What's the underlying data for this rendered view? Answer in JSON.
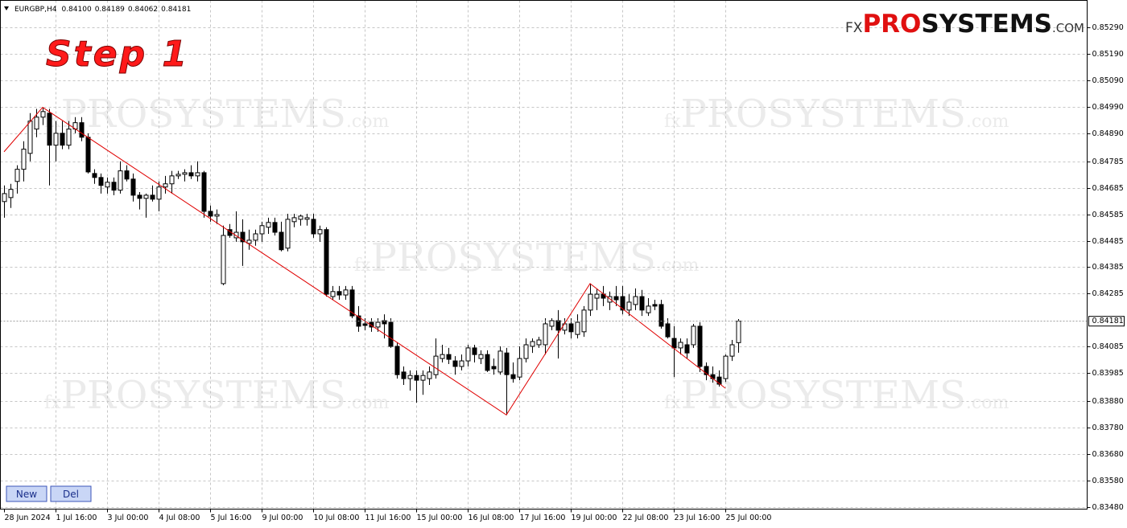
{
  "header": {
    "symbol": "EURGBP,H4",
    "ohlc": [
      "0.84100",
      "0.84189",
      "0.84062",
      "0.84181"
    ]
  },
  "annotation": "Step 1",
  "logo": [
    "FX",
    "PRO",
    "SYSTEMS",
    ".COM"
  ],
  "watermark": [
    "fx",
    "PROSYSTEMS",
    ".com"
  ],
  "buttons": [
    "New",
    "Del"
  ],
  "chart_data": {
    "type": "candlestick",
    "categories": [
      "28 Jun 2024",
      null,
      null,
      null,
      null,
      null,
      null,
      null,
      "1 Jul 16:00",
      null,
      null,
      null,
      null,
      null,
      null,
      null,
      "3 Jul 00:00",
      null,
      null,
      null,
      null,
      null,
      null,
      null,
      "4 Jul 08:00",
      null,
      null,
      null,
      null,
      null,
      null,
      null,
      "5 Jul 16:00",
      null,
      null,
      null,
      null,
      null,
      null,
      null,
      "9 Jul 00:00",
      null,
      null,
      null,
      null,
      null,
      null,
      null,
      "10 Jul 08:00",
      null,
      null,
      null,
      null,
      null,
      null,
      null,
      "11 Jul 16:00",
      null,
      null,
      null,
      null,
      null,
      null,
      null,
      "15 Jul 00:00",
      null,
      null,
      null,
      null,
      null,
      null,
      null,
      "16 Jul 08:00",
      null,
      null,
      null,
      null,
      null,
      null,
      null,
      "17 Jul 16:00",
      null,
      null,
      null,
      null,
      null,
      null,
      null,
      "19 Jul 00:00",
      null,
      null,
      null,
      null,
      null,
      null,
      null,
      "22 Jul 08:00",
      null,
      null,
      null,
      null,
      null,
      null,
      null,
      "23 Jul 16:00",
      null,
      null,
      null,
      null,
      null,
      null,
      null,
      "25 Jul 00:00",
      null,
      null
    ],
    "open": [
      0.84633,
      0.84648,
      0.84709,
      0.84755,
      0.84815,
      0.84907,
      0.84952,
      0.84967,
      0.84846,
      0.84891,
      0.84846,
      0.84907,
      0.84931,
      0.84876,
      0.84739,
      0.84724,
      0.84688,
      0.84706,
      0.84676,
      0.84749,
      0.84718,
      0.84657,
      0.84645,
      0.84657,
      0.84642,
      0.84688,
      0.847,
      0.8473,
      0.84736,
      0.84742,
      0.8473,
      0.84742,
      0.84596,
      0.84578,
      0.84323,
      0.84527,
      0.84496,
      0.84517,
      0.84475,
      0.84487,
      0.84511,
      0.84536,
      0.84554,
      0.84517,
      0.84457,
      0.84557,
      0.84566,
      0.84566,
      0.84566,
      0.84511,
      0.84527,
      0.84274,
      0.84293,
      0.8428,
      0.84299,
      0.84201,
      0.84171,
      0.84177,
      0.84159,
      0.84183,
      0.84177,
      0.84086,
      0.83989,
      0.83964,
      0.83976,
      0.83958,
      0.83964,
      0.83979,
      0.8404,
      0.84055,
      0.84031,
      0.8401,
      0.84031,
      0.8408,
      0.8404,
      0.84055,
      0.8401,
      0.83989,
      0.84061,
      0.83979,
      0.8397,
      0.8404,
      0.84086,
      0.84092,
      0.84092,
      0.84162,
      0.84183,
      0.84147,
      0.84171,
      0.84131,
      0.84141,
      0.84223,
      0.84268,
      0.84283,
      0.84253,
      0.84274,
      0.84274,
      0.84223,
      0.84244,
      0.84274,
      0.84213,
      0.84244,
      0.84244,
      0.84171,
      0.84116,
      0.8408,
      0.84092,
      0.84092,
      0.84162,
      0.8401,
      0.83979,
      0.8397,
      0.83964,
      0.84049,
      0.841
    ],
    "high": [
      0.84694,
      0.847,
      0.8477,
      0.84861,
      0.84967,
      0.84983,
      0.84989,
      0.84983,
      0.84937,
      0.84937,
      0.84937,
      0.84952,
      0.84952,
      0.84891,
      0.84755,
      0.84739,
      0.84724,
      0.84724,
      0.84785,
      0.8477,
      0.84739,
      0.84669,
      0.84663,
      0.84694,
      0.84709,
      0.8473,
      0.84749,
      0.84749,
      0.84755,
      0.8477,
      0.84785,
      0.84749,
      0.84618,
      0.84603,
      0.84542,
      0.84548,
      0.84596,
      0.84566,
      0.84527,
      0.84527,
      0.84557,
      0.84572,
      0.84572,
      0.84557,
      0.84587,
      0.84587,
      0.84584,
      0.84587,
      0.84587,
      0.84542,
      0.84536,
      0.84314,
      0.84314,
      0.84314,
      0.84314,
      0.84238,
      0.84192,
      0.84192,
      0.84192,
      0.84207,
      0.84192,
      0.84101,
      0.8401,
      0.83995,
      0.83995,
      0.83995,
      0.8401,
      0.84116,
      0.84092,
      0.8408,
      0.84049,
      0.84055,
      0.84092,
      0.84092,
      0.84071,
      0.84071,
      0.8404,
      0.84086,
      0.8408,
      0.84025,
      0.84086,
      0.84116,
      0.84116,
      0.84122,
      0.84192,
      0.84192,
      0.84223,
      0.84192,
      0.84192,
      0.84207,
      0.84238,
      0.84323,
      0.84305,
      0.84314,
      0.84293,
      0.84314,
      0.84314,
      0.84283,
      0.84305,
      0.84299,
      0.84268,
      0.84262,
      0.84262,
      0.84192,
      0.84162,
      0.84116,
      0.84116,
      0.84171,
      0.84177,
      0.84025,
      0.8401,
      0.83995,
      0.84055,
      0.8411,
      0.84189
    ],
    "low": [
      0.84572,
      0.84609,
      0.84663,
      0.84709,
      0.84785,
      0.84876,
      0.84922,
      0.84694,
      0.84785,
      0.84831,
      0.84831,
      0.84891,
      0.84861,
      0.84739,
      0.847,
      0.84663,
      0.84663,
      0.84657,
      0.84663,
      0.84709,
      0.84633,
      0.84603,
      0.84572,
      0.84633,
      0.84596,
      0.84663,
      0.84663,
      0.84718,
      0.84709,
      0.84718,
      0.84709,
      0.84572,
      0.84557,
      0.84548,
      0.84317,
      0.84496,
      0.84481,
      0.8439,
      0.84451,
      0.84466,
      0.84481,
      0.84511,
      0.84505,
      0.84445,
      0.84445,
      0.84536,
      0.84542,
      0.84542,
      0.84496,
      0.84481,
      0.84274,
      0.84262,
      0.84262,
      0.84262,
      0.84192,
      0.84141,
      0.84147,
      0.84141,
      0.84141,
      0.84116,
      0.8408,
      0.83964,
      0.8394,
      0.83919,
      0.83873,
      0.83903,
      0.8394,
      0.83964,
      0.84025,
      0.84019,
      0.83979,
      0.83995,
      0.8401,
      0.84025,
      0.84019,
      0.83989,
      0.83979,
      0.83979,
      0.83827,
      0.83949,
      0.83958,
      0.84025,
      0.84061,
      0.8408,
      0.84055,
      0.84147,
      0.8404,
      0.84131,
      0.84116,
      0.84116,
      0.84122,
      0.84201,
      0.84223,
      0.84238,
      0.84223,
      0.84238,
      0.84207,
      0.84201,
      0.84223,
      0.84201,
      0.84201,
      0.84223,
      0.84153,
      0.84116,
      0.8397,
      0.84055,
      0.8404,
      0.8408,
      0.83989,
      0.83958,
      0.83949,
      0.83934,
      0.83952,
      0.84031,
      0.84062
    ],
    "close": [
      0.84663,
      0.84679,
      0.84755,
      0.84831,
      0.84937,
      0.84952,
      0.84973,
      0.84846,
      0.84891,
      0.84846,
      0.84907,
      0.84931,
      0.84876,
      0.84745,
      0.84724,
      0.84694,
      0.84706,
      0.84676,
      0.84749,
      0.84718,
      0.84657,
      0.84645,
      0.84657,
      0.84642,
      0.84688,
      0.847,
      0.8473,
      0.84736,
      0.84742,
      0.8473,
      0.84742,
      0.84596,
      0.84578,
      0.84584,
      0.84505,
      0.84505,
      0.84517,
      0.84481,
      0.84487,
      0.84511,
      0.84542,
      0.84554,
      0.84517,
      0.84451,
      0.84566,
      0.84572,
      0.84578,
      0.84572,
      0.84511,
      0.84527,
      0.84283,
      0.84293,
      0.8428,
      0.84299,
      0.84201,
      0.84162,
      0.84165,
      0.84159,
      0.84177,
      0.84171,
      0.84086,
      0.83979,
      0.83964,
      0.83976,
      0.83958,
      0.83976,
      0.83989,
      0.84049,
      0.84055,
      0.84037,
      0.8401,
      0.84031,
      0.8408,
      0.84055,
      0.84055,
      0.83995,
      0.84001,
      0.84068,
      0.83979,
      0.83964,
      0.8404,
      0.84092,
      0.84104,
      0.8411,
      0.84171,
      0.84183,
      0.84147,
      0.84171,
      0.84141,
      0.84177,
      0.84223,
      0.84283,
      0.84283,
      0.84268,
      0.84274,
      0.84262,
      0.84223,
      0.84253,
      0.84274,
      0.84223,
      0.84238,
      0.84238,
      0.84162,
      0.84122,
      0.8408,
      0.84101,
      0.84061,
      0.84162,
      0.8401,
      0.83979,
      0.83964,
      0.83943,
      0.84049,
      0.84092,
      0.84181
    ],
    "up_color": "#ffffff",
    "down_color": "#000000",
    "wick_color": "#000000",
    "zigzag": {
      "x": [
        0,
        6,
        78,
        91,
        112
      ],
      "values": [
        0.84821,
        0.84989,
        0.83827,
        0.84323,
        0.83928
      ],
      "color": "#e00000"
    },
    "current_price": {
      "value": 0.84181,
      "label": "0.84181"
    },
    "ylim": [
      0.83471,
      0.85393
    ],
    "yticks": [
      {
        "value": 0.8529,
        "label": "0.85290"
      },
      {
        "value": 0.8519,
        "label": "0.85190"
      },
      {
        "value": 0.8509,
        "label": "0.85090"
      },
      {
        "value": 0.8499,
        "label": "0.84990"
      },
      {
        "value": 0.8489,
        "label": "0.84890"
      },
      {
        "value": 0.84785,
        "label": "0.84785"
      },
      {
        "value": 0.84685,
        "label": "0.84685"
      },
      {
        "value": 0.84585,
        "label": "0.84585"
      },
      {
        "value": 0.84485,
        "label": "0.84485"
      },
      {
        "value": 0.84385,
        "label": "0.84385"
      },
      {
        "value": 0.84285,
        "label": "0.84285"
      },
      {
        "value": 0.84085,
        "label": "0.84085"
      },
      {
        "value": 0.83985,
        "label": "0.83985"
      },
      {
        "value": 0.8388,
        "label": "0.83880"
      },
      {
        "value": 0.8378,
        "label": "0.83780"
      },
      {
        "value": 0.8368,
        "label": "0.83680"
      },
      {
        "value": 0.8358,
        "label": "0.83580"
      },
      {
        "value": 0.8348,
        "label": "0.83480"
      }
    ],
    "grid": true
  }
}
